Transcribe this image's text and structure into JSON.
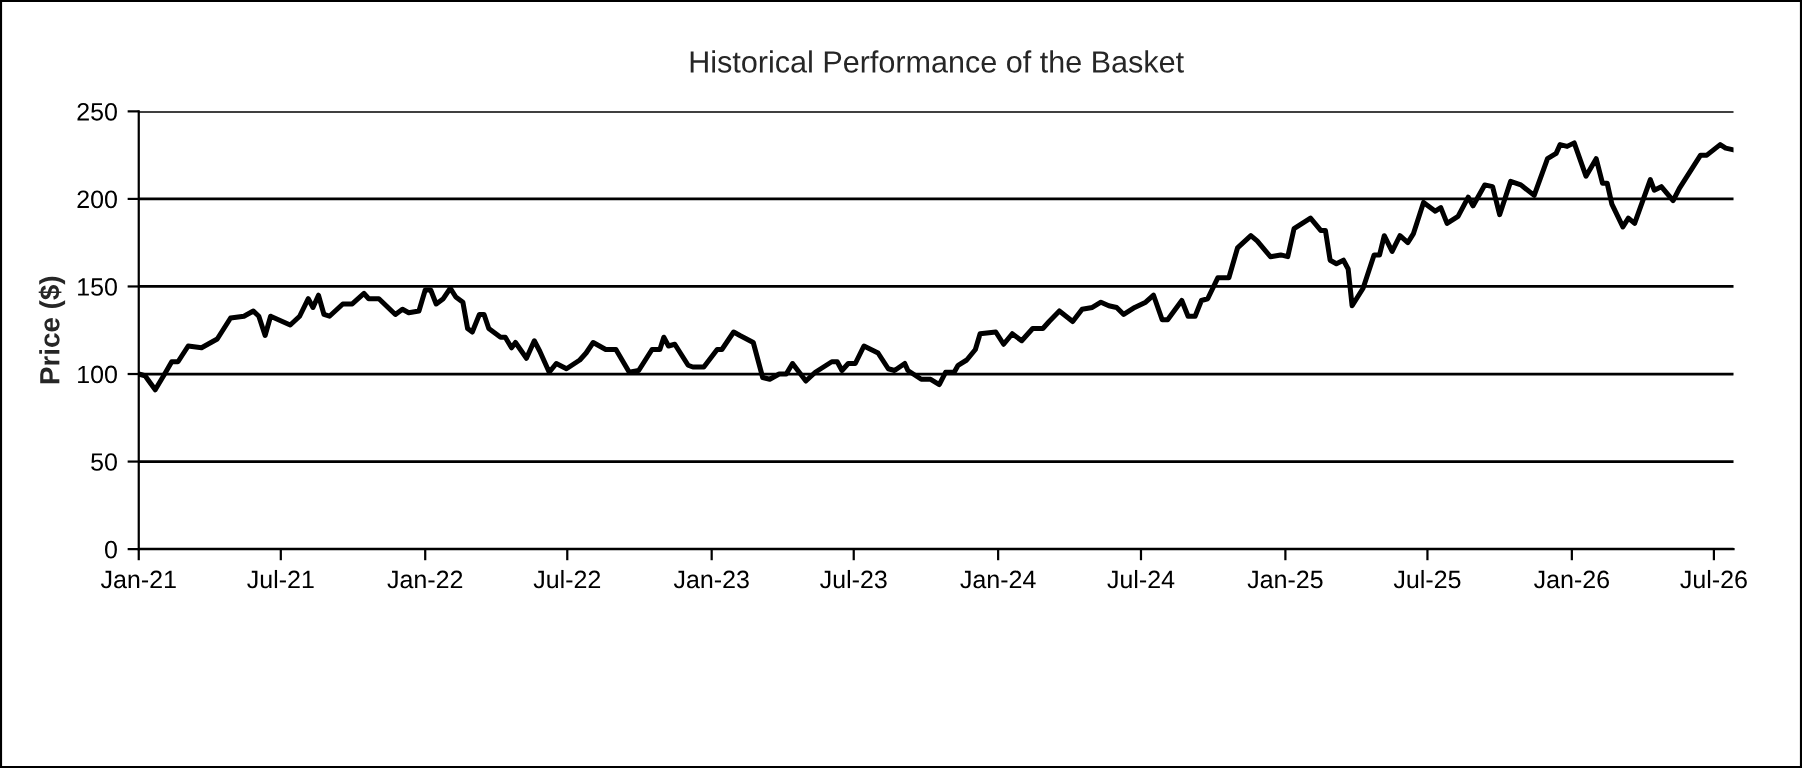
{
  "chart_data": {
    "type": "line",
    "title": "Historical Performance of the Basket",
    "ylabel": "Price ($)",
    "x": [
      "2021-01-01",
      "2021-01-09",
      "2021-01-22",
      "2021-02-03",
      "2021-02-12",
      "2021-02-20",
      "2021-03-05",
      "2021-03-22",
      "2021-04-11",
      "2021-04-28",
      "2021-05-15",
      "2021-05-27",
      "2021-06-03",
      "2021-06-11",
      "2021-06-18",
      "2021-07-13",
      "2021-07-25",
      "2021-08-05",
      "2021-08-11",
      "2021-08-18",
      "2021-08-25",
      "2021-09-01",
      "2021-09-18",
      "2021-09-30",
      "2021-10-15",
      "2021-10-21",
      "2021-11-03",
      "2021-11-24",
      "2021-12-03",
      "2021-12-11",
      "2021-12-24",
      "2022-01-01",
      "2022-01-08",
      "2022-01-15",
      "2022-01-24",
      "2022-02-02",
      "2022-02-09",
      "2022-02-18",
      "2022-02-24",
      "2022-03-02",
      "2022-03-11",
      "2022-03-17",
      "2022-03-23",
      "2022-04-07",
      "2022-04-13",
      "2022-04-21",
      "2022-04-26",
      "2022-05-10",
      "2022-05-20",
      "2022-05-27",
      "2022-06-08",
      "2022-06-17",
      "2022-06-30",
      "2022-07-17",
      "2022-07-25",
      "2022-08-03",
      "2022-08-19",
      "2022-09-01",
      "2022-09-18",
      "2022-09-30",
      "2022-10-17",
      "2022-10-27",
      "2022-11-01",
      "2022-11-07",
      "2022-11-15",
      "2022-12-02",
      "2022-12-08",
      "2022-12-22",
      "2023-01-08",
      "2023-01-14",
      "2023-01-29",
      "2023-02-06",
      "2023-02-23",
      "2023-03-07",
      "2023-03-16",
      "2023-03-28",
      "2023-04-06",
      "2023-04-14",
      "2023-05-01",
      "2023-05-13",
      "2023-06-03",
      "2023-06-10",
      "2023-06-16",
      "2023-06-24",
      "2023-07-03",
      "2023-07-14",
      "2023-08-01",
      "2023-08-14",
      "2023-08-22",
      "2023-09-04",
      "2023-09-08",
      "2023-09-25",
      "2023-10-07",
      "2023-10-18",
      "2023-10-26",
      "2023-11-06",
      "2023-11-11",
      "2023-11-22",
      "2023-12-03",
      "2023-12-09",
      "2023-12-29",
      "2024-01-08",
      "2024-01-19",
      "2024-01-31",
      "2024-02-14",
      "2024-02-27",
      "2024-03-06",
      "2024-03-19",
      "2024-04-05",
      "2024-04-17",
      "2024-04-30",
      "2024-05-11",
      "2024-05-21",
      "2024-05-31",
      "2024-06-09",
      "2024-06-23",
      "2024-07-07",
      "2024-07-17",
      "2024-07-28",
      "2024-08-04",
      "2024-08-22",
      "2024-08-30",
      "2024-09-08",
      "2024-09-16",
      "2024-09-24",
      "2024-10-07",
      "2024-10-21",
      "2024-11-01",
      "2024-11-18",
      "2024-11-26",
      "2024-12-13",
      "2024-12-26",
      "2025-01-04",
      "2025-01-12",
      "2025-02-02",
      "2025-02-15",
      "2025-02-21",
      "2025-02-27",
      "2025-03-07",
      "2025-03-16",
      "2025-03-22",
      "2025-03-27",
      "2025-04-10",
      "2025-04-24",
      "2025-05-01",
      "2025-05-07",
      "2025-05-17",
      "2025-05-27",
      "2025-06-06",
      "2025-06-13",
      "2025-06-26",
      "2025-07-11",
      "2025-07-18",
      "2025-07-26",
      "2025-08-09",
      "2025-08-22",
      "2025-08-28",
      "2025-09-12",
      "2025-09-22",
      "2025-10-01",
      "2025-10-15",
      "2025-10-28",
      "2025-11-14",
      "2025-12-01",
      "2025-12-12",
      "2025-12-17",
      "2025-12-26",
      "2026-01-04",
      "2026-01-19",
      "2026-02-01",
      "2026-02-09",
      "2026-02-15",
      "2026-02-21",
      "2026-03-07",
      "2026-03-14",
      "2026-03-22",
      "2026-04-11",
      "2026-04-16",
      "2026-04-25",
      "2026-05-10",
      "2026-05-18",
      "2026-06-14",
      "2026-06-22",
      "2026-07-09",
      "2026-07-16",
      "2026-07-26"
    ],
    "series": [
      {
        "color": "#000000",
        "values": [
          100,
          99,
          91,
          100,
          107,
          107,
          116,
          115,
          120,
          132,
          133,
          136,
          133,
          122,
          133,
          128,
          133,
          143,
          138,
          145,
          134,
          133,
          140,
          140,
          146,
          143,
          143,
          134,
          137,
          135,
          136,
          148,
          148,
          140,
          143,
          149,
          144,
          141,
          126,
          124,
          134,
          134,
          126,
          121,
          121,
          115,
          118,
          109,
          119,
          113,
          101,
          106,
          103,
          108,
          112,
          118,
          114,
          114,
          101,
          102,
          114,
          114,
          121,
          116,
          117,
          105,
          104,
          104,
          114,
          114,
          124,
          122,
          118,
          98,
          97,
          100,
          100,
          106,
          96,
          101,
          107,
          107,
          102,
          106,
          106,
          116,
          112,
          103,
          102,
          106,
          102,
          97,
          97,
          94,
          101,
          101,
          105,
          108,
          114,
          123,
          124,
          117,
          123,
          119,
          126,
          126,
          130,
          136,
          130,
          137,
          138,
          141,
          139,
          138,
          134,
          138,
          141,
          145,
          131,
          131,
          142,
          133,
          133,
          142,
          143,
          155,
          155,
          172,
          179,
          176,
          167,
          168,
          167,
          183,
          189,
          182,
          182,
          165,
          163,
          165,
          160,
          139,
          149,
          168,
          168,
          179,
          170,
          179,
          175,
          180,
          198,
          193,
          195,
          186,
          190,
          201,
          196,
          208,
          207,
          191,
          210,
          208,
          202,
          223,
          226,
          231,
          230,
          232,
          213,
          223,
          209,
          209,
          197,
          184,
          189,
          186,
          211,
          205,
          207,
          199,
          206,
          225,
          225,
          231,
          229,
          228
        ]
      }
    ],
    "xlim": [
      "2021-01-01",
      "2026-07-26"
    ],
    "xticks": [
      {
        "value": "2021-01-01",
        "label": "Jan-21"
      },
      {
        "value": "2021-07-01",
        "label": "Jul-21"
      },
      {
        "value": "2022-01-01",
        "label": "Jan-22"
      },
      {
        "value": "2022-07-01",
        "label": "Jul-22"
      },
      {
        "value": "2023-01-01",
        "label": "Jan-23"
      },
      {
        "value": "2023-07-01",
        "label": "Jul-23"
      },
      {
        "value": "2024-01-01",
        "label": "Jan-24"
      },
      {
        "value": "2024-07-01",
        "label": "Jul-24"
      },
      {
        "value": "2025-01-01",
        "label": "Jan-25"
      },
      {
        "value": "2025-07-01",
        "label": "Jul-25"
      },
      {
        "value": "2026-01-01",
        "label": "Jan-26"
      },
      {
        "value": "2026-07-01",
        "label": "Jul-26"
      }
    ],
    "ylim": [
      0,
      250
    ],
    "yticks": [
      0,
      50,
      100,
      150,
      200,
      250
    ],
    "grid": "y",
    "line_style": "solid",
    "marker": "none"
  }
}
